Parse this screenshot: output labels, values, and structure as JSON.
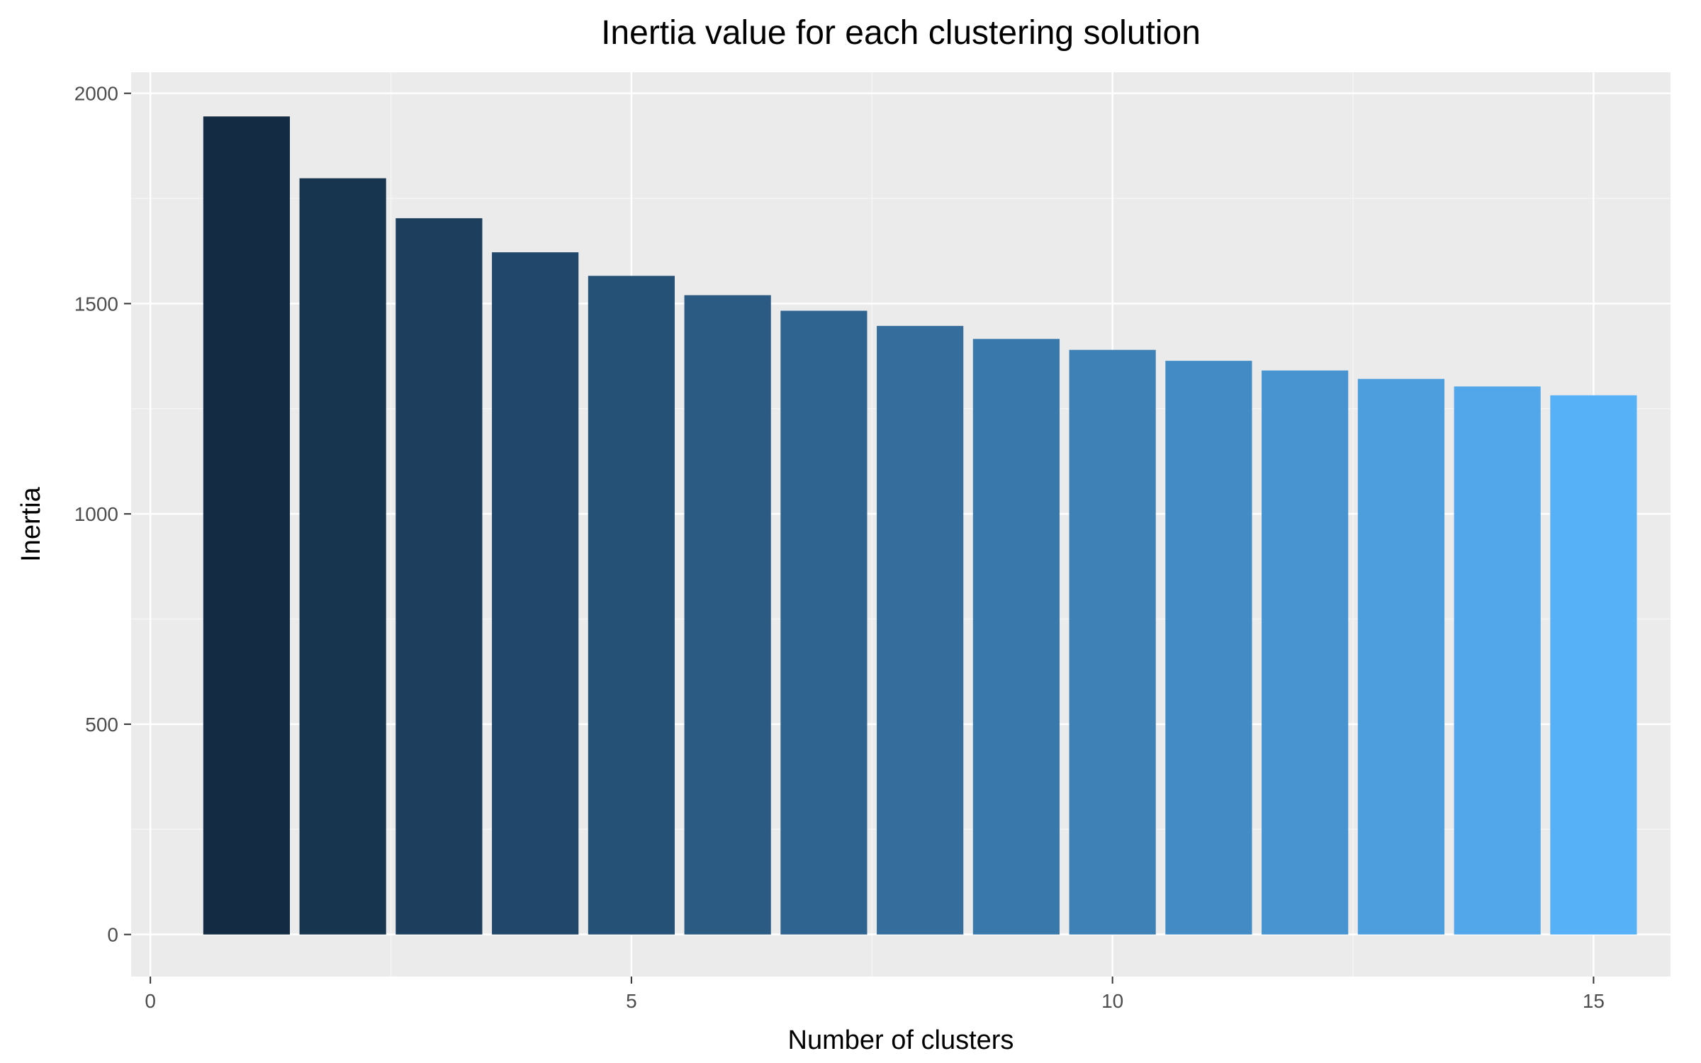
{
  "chart_data": {
    "type": "bar",
    "title": "Inertia value for each clustering solution",
    "xlabel": "Number of clusters",
    "ylabel": "Inertia",
    "x": [
      1,
      2,
      3,
      4,
      5,
      6,
      7,
      8,
      9,
      10,
      11,
      12,
      13,
      14,
      15
    ],
    "values": [
      1945,
      1798,
      1703,
      1622,
      1566,
      1520,
      1483,
      1447,
      1416,
      1390,
      1364,
      1341,
      1321,
      1303,
      1282
    ],
    "xlim": [
      -0.2,
      15.8
    ],
    "ylim": [
      -100,
      2050
    ],
    "xticks": [
      0,
      5,
      10,
      15
    ],
    "xtick_labels": [
      "0",
      "5",
      "10",
      "15"
    ],
    "yticks": [
      0,
      500,
      1000,
      1500,
      2000
    ],
    "ytick_labels": [
      "0",
      "500",
      "1000",
      "1500",
      "2000"
    ],
    "grid": true,
    "legend": "none",
    "colors": {
      "panel_background": "#EBEBEB",
      "grid_major": "#FFFFFF",
      "grid_minor": "#F5F5F5",
      "fill_low": "#132B43",
      "fill_high": "#56B1F7",
      "tick_text": "#4D4D4D",
      "tick_mark": "#333333"
    }
  }
}
